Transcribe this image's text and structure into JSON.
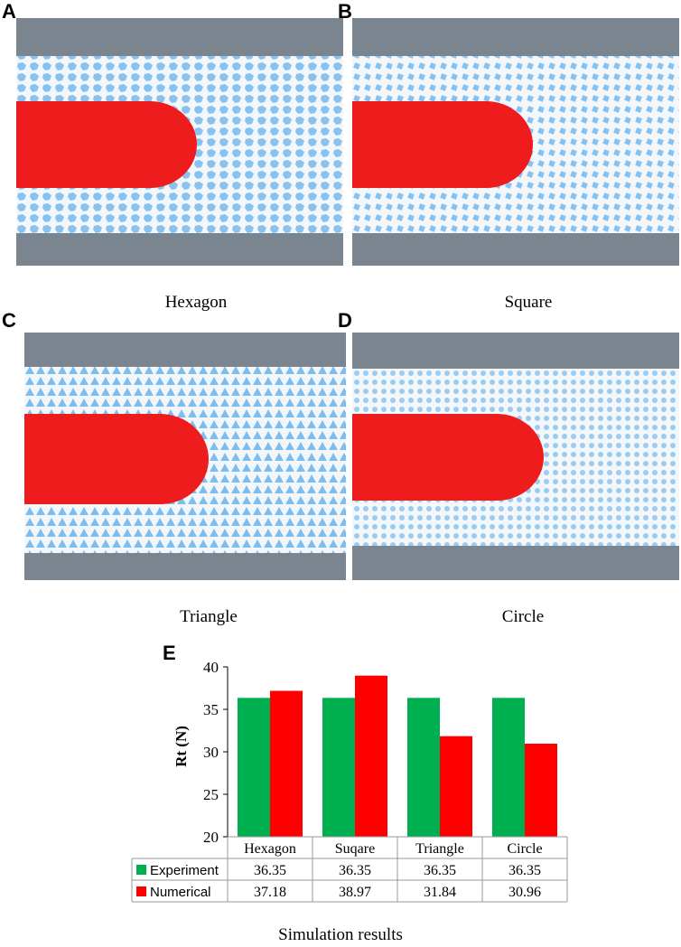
{
  "panels": [
    {
      "letter": "A",
      "caption": "Hexagon"
    },
    {
      "letter": "B",
      "caption": "Square"
    },
    {
      "letter": "C",
      "caption": "Triangle"
    },
    {
      "letter": "D",
      "caption": "Circle"
    }
  ],
  "colors": {
    "wall": "#7a8590",
    "particle_edge": "#2f97e8",
    "particle": "#f4f7fa",
    "probe": "#ee1c1c",
    "experiment": "#00b050",
    "numerical": "#ff0000"
  },
  "chart_letter": "E",
  "caption_bottom": "Simulation results",
  "chart_data": {
    "type": "bar",
    "ylabel": "Rt (N)",
    "ylim": [
      20,
      40
    ],
    "yticks": [
      20,
      25,
      30,
      35,
      40
    ],
    "categories": [
      "Hexagon",
      "Suqare",
      "Triangle",
      "Circle"
    ],
    "series": [
      {
        "name": "Experiment",
        "values": [
          36.35,
          36.35,
          36.35,
          36.35
        ],
        "color": "#00b050"
      },
      {
        "name": "Numerical",
        "values": [
          37.18,
          38.97,
          31.84,
          30.96
        ],
        "color": "#ff0000"
      }
    ],
    "grid": false,
    "legend": "data-table"
  }
}
